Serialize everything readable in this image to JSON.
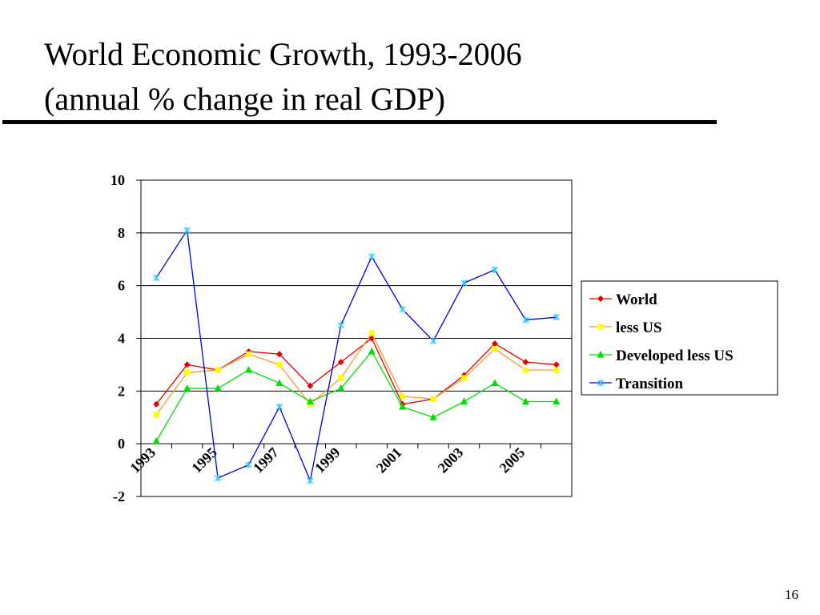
{
  "slide": {
    "title_line1": "World Economic Growth, 1993-2006",
    "title_line2": "(annual % change in real GDP)",
    "page_number": "16"
  },
  "chart_data": {
    "type": "line",
    "x": [
      1993,
      1994,
      1995,
      1996,
      1997,
      1998,
      1999,
      2000,
      2001,
      2002,
      2003,
      2004,
      2005,
      2006
    ],
    "x_tick_labels": [
      "1993",
      "1995",
      "1997",
      "1999",
      "2001",
      "2003",
      "2005"
    ],
    "y_ticks": [
      -2,
      0,
      2,
      4,
      6,
      8,
      10
    ],
    "ylim": [
      -2,
      10
    ],
    "grid": "horizontal",
    "legend_position": "right",
    "series": [
      {
        "name": "World",
        "color": "#e00000",
        "marker": "diamond",
        "values": [
          1.5,
          3.0,
          2.8,
          3.5,
          3.4,
          2.2,
          3.1,
          4.0,
          1.5,
          1.7,
          2.6,
          3.8,
          3.1,
          3.0
        ]
      },
      {
        "name": "less US",
        "color": "#ff9933",
        "marker_color": "#ffff00",
        "marker": "square",
        "values": [
          1.1,
          2.7,
          2.8,
          3.4,
          3.0,
          1.5,
          2.5,
          4.2,
          1.8,
          1.7,
          2.5,
          3.6,
          2.8,
          2.8
        ]
      },
      {
        "name": "Developed less US",
        "color": "#00dd00",
        "marker": "triangle",
        "values": [
          0.1,
          2.1,
          2.1,
          2.8,
          2.3,
          1.6,
          2.1,
          3.5,
          1.4,
          1.0,
          1.6,
          2.3,
          1.6,
          1.6
        ]
      },
      {
        "name": "Transition",
        "color": "#0000cc",
        "marker_color": "#33ccff",
        "marker": "star",
        "values": [
          6.3,
          8.1,
          -1.3,
          -0.8,
          1.4,
          -1.4,
          4.5,
          7.1,
          5.1,
          3.9,
          6.1,
          6.6,
          4.7,
          4.8
        ]
      }
    ]
  }
}
